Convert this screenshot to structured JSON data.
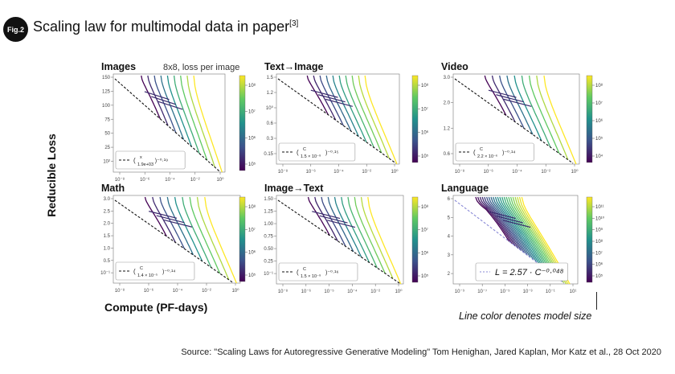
{
  "figure": {
    "badge": "Fig.2",
    "title": "Scaling law for multimodal data in paper",
    "title_ref": "[3]",
    "ylabel": "Reducible  Loss",
    "xlabel": "Compute (PF-days)",
    "model_size_note": "Line color denotes model size",
    "source": "Source: \"Scaling Laws for Autoregressive Generative Modeling\" Tom Henighan, Jared Kaplan, Mor Katz et al., 28 Oct 2020"
  },
  "colors": {
    "viridis": [
      "#440154",
      "#3b528b",
      "#21918c",
      "#5ec962",
      "#fde725"
    ],
    "fit_line": "#111111",
    "language_fit": "#8a8ad6"
  },
  "chart_data": [
    {
      "type": "line",
      "title": "Images",
      "subtitle": "8x8, loss per image",
      "yticks": [
        "150",
        "125",
        "100",
        "75",
        "50",
        "25",
        "10²"
      ],
      "xticks": [
        "10⁻⁸",
        "10⁻⁶",
        "10⁻⁴",
        "10⁻²",
        "10⁰"
      ],
      "fit_label": "(x / 1.9e+03)^-0.19",
      "fit_prefix": "(",
      "fit_num": "x",
      "fit_den": "1.9e+03",
      "fit_exp": ")⁻⁰·¹⁹",
      "colorbar_ticks": [
        "10⁸",
        "10⁷",
        "10⁶",
        "10⁵"
      ]
    },
    {
      "type": "line",
      "title": "Text→Image",
      "subtitle": "",
      "yticks": [
        "1.5",
        "1.2",
        "10⁰",
        "0.6",
        "0.3",
        "0.15"
      ],
      "xticks": [
        "10⁻⁸",
        "10⁻⁶",
        "10⁻⁴",
        "10⁻²",
        "10⁰"
      ],
      "fit_label": "(C / 1.5×10⁻⁹)^-0.15",
      "fit_prefix": "(",
      "fit_num": "C",
      "fit_den": "1.5 × 10⁻⁹",
      "fit_exp": ")⁻⁰·¹⁵",
      "colorbar_ticks": [
        "10⁸",
        "10⁷",
        "10⁶",
        "10⁵"
      ]
    },
    {
      "type": "line",
      "title": "Video",
      "subtitle": "",
      "yticks": [
        "3.0",
        "2.0",
        "1.2",
        "0.6"
      ],
      "xticks": [
        "10⁻⁸",
        "10⁻⁶",
        "10⁻⁴",
        "10⁻²",
        "10⁰"
      ],
      "fit_label": "(C / 2.2×10⁻⁶)^-0.14",
      "fit_prefix": "(",
      "fit_num": "C",
      "fit_den": "2.2 × 10⁻⁶",
      "fit_exp": ")⁻⁰·¹⁴",
      "colorbar_ticks": [
        "10⁸",
        "10⁷",
        "10⁶",
        "10⁵",
        "10⁴"
      ]
    },
    {
      "type": "line",
      "title": "Math",
      "subtitle": "",
      "yticks": [
        "3.0",
        "2.5",
        "2.0",
        "1.5",
        "1.0",
        "0.5",
        "10⁻¹"
      ],
      "xticks": [
        "10⁻⁸",
        "10⁻⁶",
        "10⁻⁴",
        "10⁻²",
        "10⁰"
      ],
      "fit_label": "(C / 1.4×10⁻⁵)^-0.14",
      "fit_prefix": "(",
      "fit_num": "C",
      "fit_den": "1.4 × 10⁻⁵",
      "fit_exp": ")⁻⁰·¹⁴",
      "colorbar_ticks": [
        "10⁸",
        "10⁷",
        "10⁶",
        "10⁵"
      ]
    },
    {
      "type": "line",
      "title": "Image→Text",
      "subtitle": "",
      "yticks": [
        "1.50",
        "1.25",
        "1.00",
        "0.75",
        "0.50",
        "0.25",
        "10⁻¹"
      ],
      "xticks": [
        "10⁻⁸",
        "10⁻⁶",
        "10⁻⁵",
        "10⁻⁴",
        "10⁻²",
        "10⁰"
      ],
      "fit_label": "(C / 1.5×10⁻⁹)^-0.16",
      "fit_prefix": "(",
      "fit_num": "C",
      "fit_den": "1.5 × 10⁻⁹",
      "fit_exp": ")⁻⁰·¹⁶",
      "colorbar_ticks": [
        "10⁸",
        "10⁷",
        "10⁶",
        "10⁵"
      ]
    },
    {
      "type": "line",
      "title": "Language",
      "subtitle": "",
      "yticks": [
        "6",
        "5",
        "4",
        "3",
        "2"
      ],
      "xticks": [
        "10⁻⁹",
        "10⁻⁷",
        "10⁻⁵",
        "10⁻³",
        "10⁻¹",
        "10¹"
      ],
      "fit_label": "L = 2.57 · C^-0.048",
      "fit_text": "L = 2.57 · C⁻⁰·⁰⁴⁸",
      "colorbar_ticks": [
        "10¹¹",
        "10¹⁰",
        "10⁹",
        "10⁸",
        "10⁷",
        "10⁶",
        "10⁵"
      ]
    }
  ]
}
